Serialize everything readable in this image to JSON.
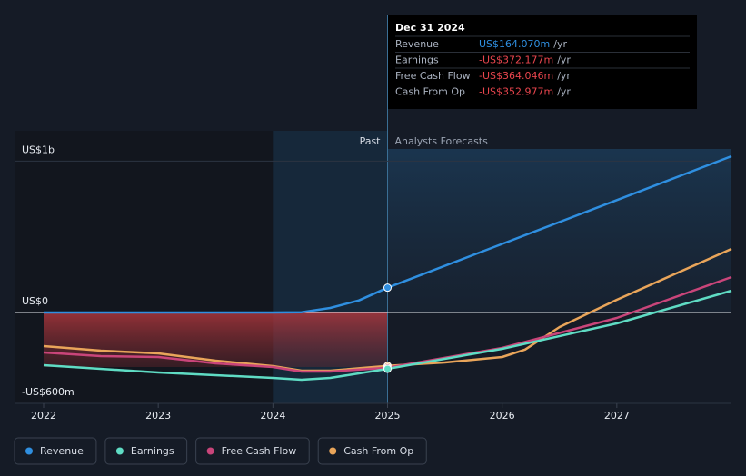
{
  "chart_data": {
    "type": "line",
    "ylim": [
      -600,
      1200
    ],
    "yticks": [
      {
        "value": 1000,
        "label": "US$1b"
      },
      {
        "value": 0,
        "label": "US$0"
      },
      {
        "value": -600,
        "label": "-US$600m"
      }
    ],
    "xlim": [
      2022,
      2028
    ],
    "xticks": [
      2022,
      2023,
      2024,
      2025,
      2026,
      2027
    ],
    "past_label": "Past",
    "forecast_label": "Analysts Forecasts",
    "series": [
      {
        "name": "Revenue",
        "color": "#2f8fe0",
        "x": [
          2022,
          2023,
          2024,
          2024.25,
          2024.5,
          2024.75,
          2025,
          2026,
          2027,
          2028
        ],
        "values": [
          0,
          0,
          0,
          2,
          30,
          80,
          164.07,
          453,
          742,
          1032
        ]
      },
      {
        "name": "Earnings",
        "color": "#5fdcc4",
        "x": [
          2022,
          2023,
          2024,
          2024.25,
          2024.5,
          2025,
          2026,
          2027,
          2028
        ],
        "values": [
          -348,
          -396,
          -432,
          -444,
          -432,
          -372.177,
          -240,
          -72,
          144
        ]
      },
      {
        "name": "Free Cash Flow",
        "color": "#c9457a",
        "x": [
          2022,
          2022.5,
          2023,
          2023.5,
          2024,
          2024.25,
          2024.5,
          2025,
          2026,
          2027,
          2028
        ],
        "values": [
          -264,
          -288,
          -294,
          -336,
          -360,
          -390,
          -390,
          -364.046,
          -234,
          -36,
          234
        ]
      },
      {
        "name": "Cash From Op",
        "color": "#e9a55a",
        "x": [
          2022,
          2022.5,
          2023,
          2023.5,
          2024,
          2024.25,
          2024.5,
          2025,
          2025.5,
          2026,
          2026.2,
          2026.5,
          2027,
          2028
        ],
        "values": [
          -222,
          -252,
          -270,
          -318,
          -354,
          -384,
          -384,
          -352.977,
          -330,
          -294,
          -245,
          -96,
          84,
          420
        ]
      }
    ],
    "tooltip": {
      "date": "Dec 31 2024",
      "suffix": "/yr",
      "rows": [
        {
          "label": "Revenue",
          "value": "US$164.070m"
        },
        {
          "label": "Earnings",
          "value": "-US$372.177m"
        },
        {
          "label": "Free Cash Flow",
          "value": "-US$364.046m"
        },
        {
          "label": "Cash From Op",
          "value": "-US$352.977m"
        }
      ]
    }
  }
}
